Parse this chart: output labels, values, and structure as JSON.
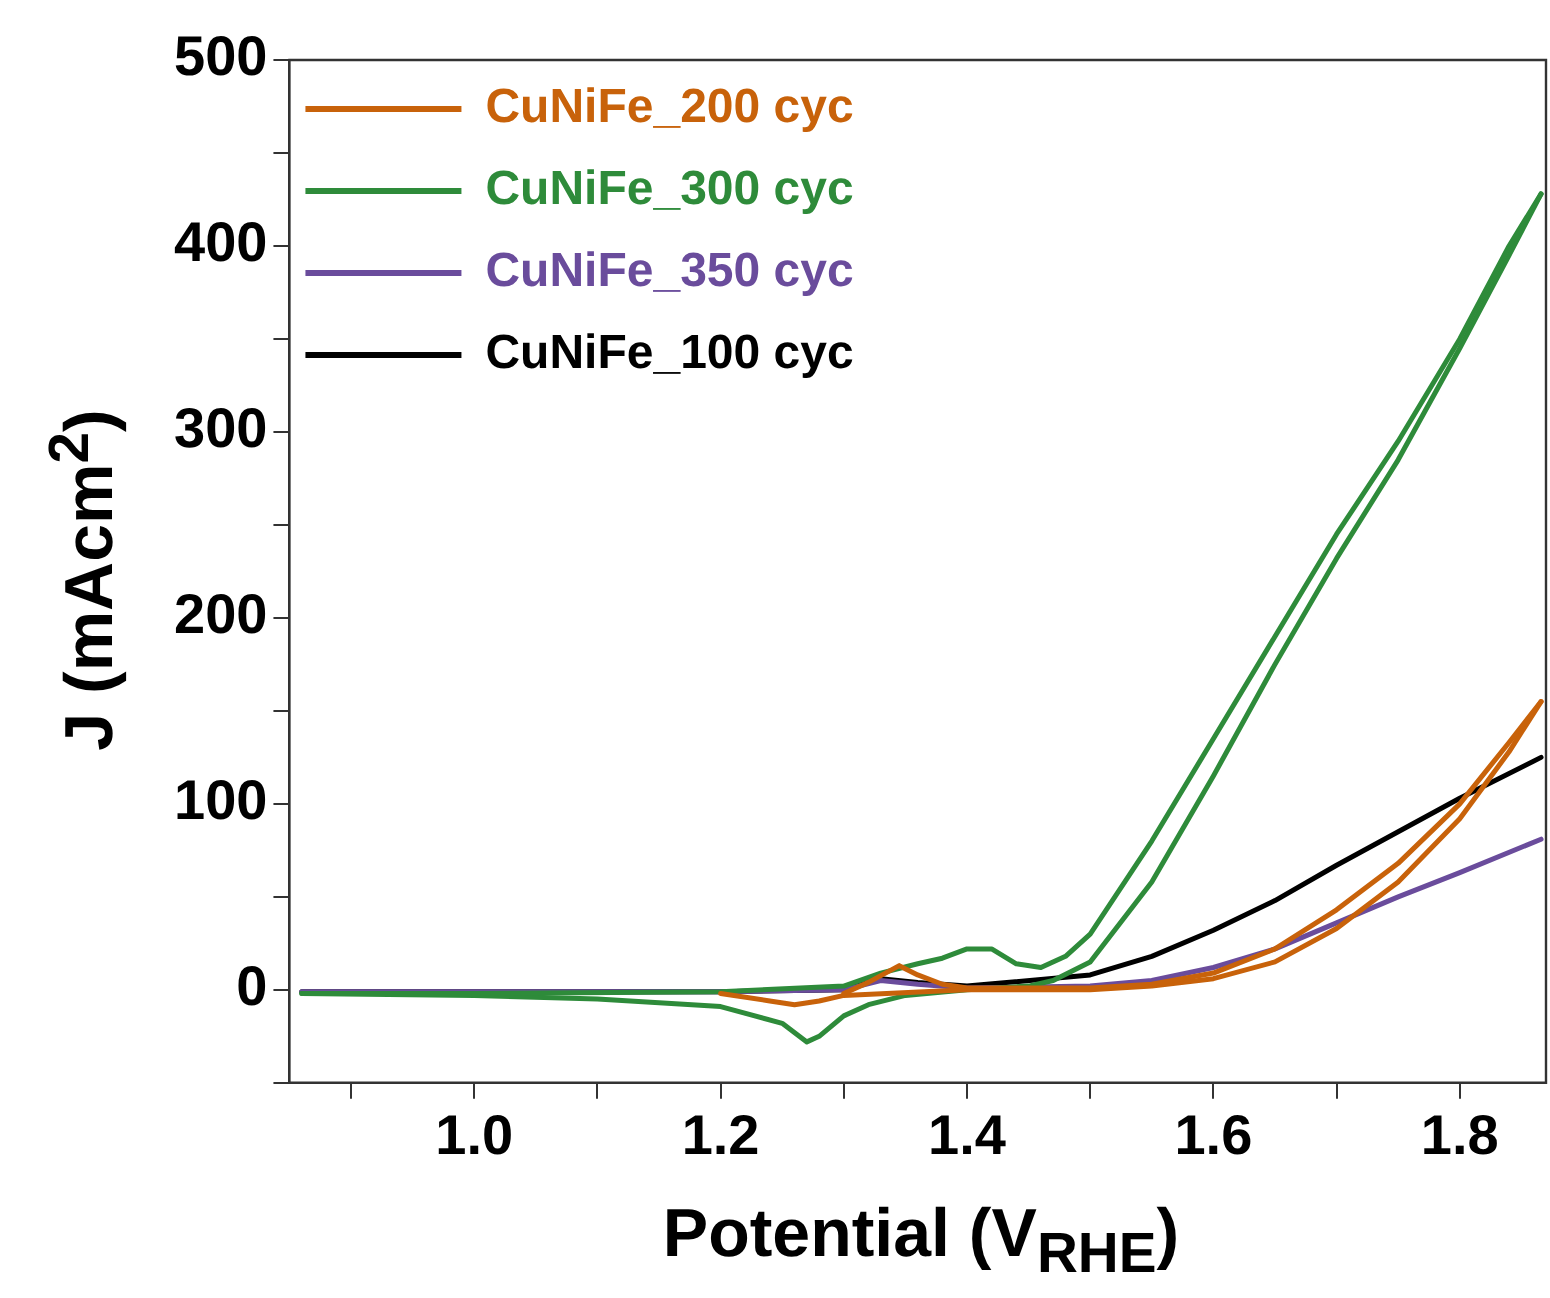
{
  "chart_data": {
    "type": "line",
    "xlabel": "Potential (V$_{RHE}$)",
    "ylabel": "J (mAcm$^{2}$)",
    "xlim": [
      0.85,
      1.87
    ],
    "ylim": [
      -50,
      500
    ],
    "xticks": [
      {
        "value": 0.9,
        "label": null
      },
      {
        "value": 1.0,
        "label": "1.0"
      },
      {
        "value": 1.1,
        "label": null
      },
      {
        "value": 1.2,
        "label": "1.2"
      },
      {
        "value": 1.3,
        "label": null
      },
      {
        "value": 1.4,
        "label": "1.4"
      },
      {
        "value": 1.5,
        "label": null
      },
      {
        "value": 1.6,
        "label": "1.6"
      },
      {
        "value": 1.7,
        "label": null
      },
      {
        "value": 1.8,
        "label": "1.8"
      }
    ],
    "yticks": [
      {
        "value": -50,
        "label": null
      },
      0,
      {
        "value": 50,
        "label": null
      },
      100,
      {
        "value": 150,
        "label": null
      },
      200,
      {
        "value": 250,
        "label": null
      },
      300,
      {
        "value": 350,
        "label": null
      },
      400,
      {
        "value": 450,
        "label": null
      },
      500
    ],
    "legend": "top left",
    "grid": false,
    "marker": "none",
    "line_style": "solid",
    "series": [
      {
        "name": "CuNiFe_200 cyc",
        "color": "#c8620a",
        "x": [
          1.3,
          1.32,
          1.345,
          1.36,
          1.38,
          1.4,
          1.5,
          1.55,
          1.6,
          1.65,
          1.7,
          1.75,
          1.8,
          1.84,
          1.866
        ],
        "values": [
          -2,
          4,
          13,
          8,
          3,
          1,
          1,
          3,
          9,
          22,
          43,
          68,
          100,
          133,
          155
        ]
      },
      {
        "color": "#c8620a",
        "x": [
          1.2,
          1.24,
          1.26,
          1.28,
          1.3,
          1.4,
          1.5,
          1.55,
          1.6,
          1.65,
          1.7,
          1.75,
          1.8,
          1.84,
          1.866
        ],
        "values": [
          -2,
          -6,
          -8,
          -6,
          -3,
          0,
          0,
          2,
          6,
          15,
          33,
          58,
          92,
          128,
          155
        ]
      },
      {
        "name": "CuNiFe_300 cyc",
        "color": "#2e8b3a",
        "x": [
          0.86,
          1.0,
          1.2,
          1.3,
          1.33,
          1.36,
          1.38,
          1.4,
          1.42,
          1.44,
          1.46,
          1.48,
          1.5,
          1.55,
          1.6,
          1.65,
          1.7,
          1.75,
          1.8,
          1.84,
          1.866
        ],
        "values": [
          -2,
          -2,
          -1,
          2,
          9,
          14,
          17,
          22,
          22,
          14,
          12,
          18,
          30,
          80,
          135,
          190,
          245,
          295,
          350,
          400,
          428
        ]
      },
      {
        "color": "#2e8b3a",
        "x": [
          0.86,
          1.0,
          1.1,
          1.2,
          1.25,
          1.27,
          1.28,
          1.3,
          1.32,
          1.35,
          1.4,
          1.45,
          1.47,
          1.5,
          1.55,
          1.6,
          1.65,
          1.7,
          1.75,
          1.8,
          1.84,
          1.866
        ],
        "values": [
          -2,
          -3,
          -5,
          -9,
          -18,
          -28,
          -25,
          -14,
          -8,
          -3,
          0,
          2,
          5,
          15,
          58,
          115,
          175,
          232,
          285,
          345,
          395,
          428
        ]
      },
      {
        "name": "CuNiFe_350 cyc",
        "color": "#6a4c9c",
        "x": [
          0.86,
          1.0,
          1.2,
          1.3,
          1.33,
          1.36,
          1.4,
          1.5,
          1.55,
          1.6,
          1.65,
          1.7,
          1.75,
          1.8,
          1.866
        ],
        "values": [
          -1,
          -1,
          -1,
          0,
          5,
          3,
          1,
          2,
          5,
          12,
          22,
          36,
          50,
          63,
          81
        ]
      },
      {
        "name": "CuNiFe_100 cyc",
        "color": "#000000",
        "x": [
          0.86,
          1.0,
          1.2,
          1.3,
          1.33,
          1.36,
          1.4,
          1.5,
          1.55,
          1.6,
          1.65,
          1.7,
          1.75,
          1.8,
          1.866
        ],
        "values": [
          -1,
          -1,
          -1,
          0,
          6,
          4,
          2,
          8,
          18,
          32,
          48,
          67,
          85,
          103,
          125
        ]
      }
    ]
  }
}
